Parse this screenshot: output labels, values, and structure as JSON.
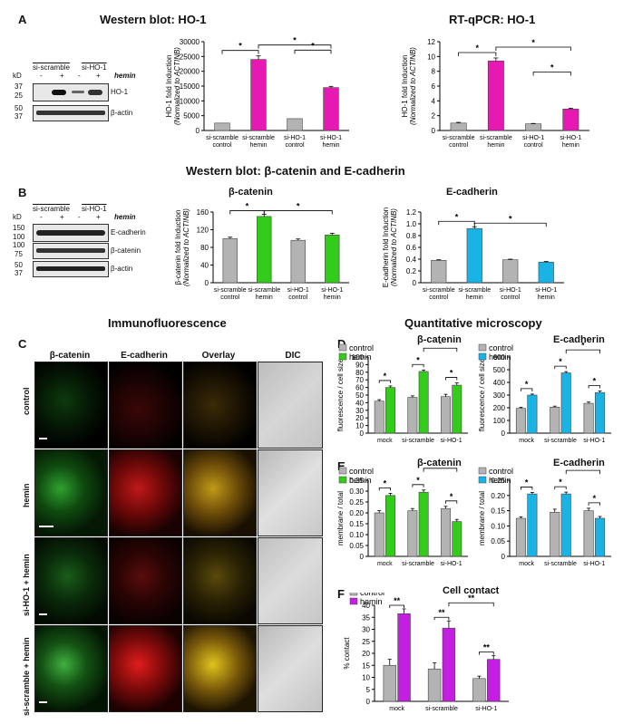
{
  "panels": {
    "A": "A",
    "B": "B",
    "C": "C",
    "D": "D",
    "E": "E",
    "F": "F"
  },
  "titles": {
    "wb_ho1": "Western blot: HO-1",
    "rtqpcr_ho1": "RT-qPCR: HO-1",
    "wb_bcat_ecad": "Western blot: β-catenin and E-cadherin",
    "bcat": "β-catenin",
    "ecad": "E-cadherin",
    "immuno": "Immunofluorescence",
    "quant": "Quantitative microscopy",
    "d_bcat": "β-catenin",
    "d_ecad": "E-cadherin",
    "e_bcat": "β-catenin",
    "e_ecad": "E-cadherin",
    "cell_contact": "Cell contact"
  },
  "blotA": {
    "groups": [
      "si-scramble",
      "si-HO-1"
    ],
    "treat": [
      "-",
      "+",
      "-",
      "+"
    ],
    "hemin": "hemin",
    "kd": "kD",
    "markers": [
      "37",
      "25",
      "50",
      "37"
    ],
    "bands": [
      "HO-1",
      "β-actin"
    ]
  },
  "blotB": {
    "groups": [
      "si-scramble",
      "si-HO-1"
    ],
    "treat": [
      "-",
      "+",
      "-",
      "+"
    ],
    "hemin": "hemin",
    "kd": "kD",
    "markers": [
      "150",
      "100",
      "100",
      "75",
      "50",
      "37"
    ],
    "bands": [
      "E-cadherin",
      "β-catenin",
      "β-actin"
    ]
  },
  "immuno": {
    "columns": [
      "β-catenin",
      "E-cadherin",
      "Overlay",
      "DIC"
    ],
    "rows": [
      "control",
      "hemin",
      "si-HO-1 + hemin",
      "si-scramble + hemin"
    ]
  },
  "legend": {
    "control": "control",
    "hemin": "hemin"
  },
  "colors": {
    "gray": "#b3b3b3",
    "magenta": "#e619b3",
    "green": "#33cc1a",
    "cyan": "#19b3e6",
    "purple": "#c31fe0"
  },
  "chart_data": [
    {
      "id": "A_wb",
      "type": "bar",
      "ylabel": "HO-1 fold Induction",
      "ylabel2": "(Normalized to ACTINB)",
      "categories": [
        "si-scramble control",
        "si-scramble hemin",
        "si-HO-1 control",
        "si-HO-1 hemin"
      ],
      "values": [
        2500,
        24000,
        4000,
        14500
      ],
      "errors": [
        0,
        1200,
        0,
        400
      ],
      "colors": [
        "#b3b3b3",
        "#e619b3",
        "#b3b3b3",
        "#e619b3"
      ],
      "ylim": [
        0,
        30000
      ],
      "yticks": [
        "0",
        "5000",
        "10000",
        "15000",
        "20000",
        "25000",
        "30000"
      ]
    },
    {
      "id": "A_qpcr",
      "type": "bar",
      "ylabel": "HO-1 fold Induction",
      "ylabel2": "(Normalized to ACTINB)",
      "categories": [
        "si-scramble control",
        "si-scramble hemin",
        "si-HO-1 control",
        "si-HO-1 hemin"
      ],
      "values": [
        1.0,
        9.4,
        0.9,
        2.9
      ],
      "errors": [
        0.1,
        0.4,
        0.05,
        0.1
      ],
      "colors": [
        "#b3b3b3",
        "#e619b3",
        "#b3b3b3",
        "#e619b3"
      ],
      "ylim": [
        0,
        12
      ],
      "yticks": [
        "0",
        "2",
        "4",
        "6",
        "8",
        "10",
        "12"
      ]
    },
    {
      "id": "B_bcat",
      "type": "bar",
      "ylabel": "β-catenin fold Induction",
      "ylabel2": "(Normalized to ACTINB)",
      "categories": [
        "si-scramble control",
        "si-scramble hemin",
        "si-HO-1 control",
        "si-HO-1 hemin"
      ],
      "values": [
        100,
        150,
        96,
        108
      ],
      "errors": [
        3,
        5,
        3,
        4
      ],
      "colors": [
        "#b3b3b3",
        "#33cc1a",
        "#b3b3b3",
        "#33cc1a"
      ],
      "ylim": [
        0,
        160
      ],
      "yticks": [
        "0",
        "40",
        "80",
        "120",
        "160"
      ]
    },
    {
      "id": "B_ecad",
      "type": "bar",
      "ylabel": "E-cadherin fold Induction",
      "ylabel2": "(Normalized to ACTINB)",
      "categories": [
        "si-scramble control",
        "si-scramble hemin",
        "si-HO-1 control",
        "si-HO-1 hemin"
      ],
      "values": [
        0.38,
        0.92,
        0.39,
        0.35
      ],
      "errors": [
        0.01,
        0.03,
        0.01,
        0.01
      ],
      "colors": [
        "#b3b3b3",
        "#19b3e6",
        "#b3b3b3",
        "#19b3e6"
      ],
      "ylim": [
        0,
        1.2
      ],
      "yticks": [
        "0",
        "0.2",
        "0.4",
        "0.6",
        "0.8",
        "1.0",
        "1.2"
      ]
    },
    {
      "id": "D_bcat",
      "type": "bar",
      "ylabel": "fluorescence / cell size",
      "categories": [
        "mock",
        "si-scramble",
        "si-HO-1"
      ],
      "series": [
        {
          "name": "control",
          "values": [
            42,
            47,
            48
          ],
          "errors": [
            2,
            2,
            3
          ]
        },
        {
          "name": "hemin",
          "values": [
            60,
            81,
            63
          ],
          "errors": [
            2,
            2,
            3
          ]
        }
      ],
      "seriesColors": [
        "#b3b3b3",
        "#33cc1a"
      ],
      "ylim": [
        0,
        100
      ],
      "yticks": [
        "0",
        "10",
        "20",
        "30",
        "40",
        "50",
        "60",
        "70",
        "80",
        "90",
        "100"
      ]
    },
    {
      "id": "D_ecad",
      "type": "bar",
      "ylabel": "fluorescence / cell size",
      "categories": [
        "mock",
        "si-scramble",
        "si-HO-1"
      ],
      "series": [
        {
          "name": "control",
          "values": [
            195,
            205,
            235
          ],
          "errors": [
            8,
            8,
            10
          ]
        },
        {
          "name": "hemin",
          "values": [
            300,
            475,
            320
          ],
          "errors": [
            8,
            10,
            12
          ]
        }
      ],
      "seriesColors": [
        "#b3b3b3",
        "#19b3e6"
      ],
      "ylim": [
        0,
        600
      ],
      "yticks": [
        "0",
        "100",
        "200",
        "300",
        "400",
        "500",
        "600"
      ]
    },
    {
      "id": "E_bcat",
      "type": "bar",
      "ylabel": "membrane / total",
      "categories": [
        "mock",
        "si-scramble",
        "si-HO-1"
      ],
      "series": [
        {
          "name": "control",
          "values": [
            0.2,
            0.21,
            0.22
          ],
          "errors": [
            0.01,
            0.01,
            0.01
          ]
        },
        {
          "name": "hemin",
          "values": [
            0.28,
            0.295,
            0.16
          ],
          "errors": [
            0.01,
            0.01,
            0.01
          ]
        }
      ],
      "seriesColors": [
        "#b3b3b3",
        "#33cc1a"
      ],
      "ylim": [
        0,
        0.35
      ],
      "yticks": [
        "0",
        "0.05",
        "0.10",
        "0.15",
        "0.20",
        "0.25",
        "0.30",
        "0.35"
      ]
    },
    {
      "id": "E_ecad",
      "type": "bar",
      "ylabel": "membrane / total",
      "categories": [
        "mock",
        "si-scramble",
        "si-HO-1"
      ],
      "series": [
        {
          "name": "control",
          "values": [
            0.125,
            0.145,
            0.15
          ],
          "errors": [
            0.005,
            0.01,
            0.008
          ]
        },
        {
          "name": "hemin",
          "values": [
            0.205,
            0.205,
            0.125
          ],
          "errors": [
            0.005,
            0.006,
            0.006
          ]
        }
      ],
      "seriesColors": [
        "#b3b3b3",
        "#19b3e6"
      ],
      "ylim": [
        0,
        0.25
      ],
      "yticks": [
        "0",
        "0.05",
        "0.10",
        "0.15",
        "0.20",
        "0.25"
      ]
    },
    {
      "id": "F_contact",
      "type": "bar",
      "ylabel": "% contact",
      "categories": [
        "mock",
        "si-scramble",
        "si-HO-1"
      ],
      "series": [
        {
          "name": "control",
          "values": [
            15,
            13.5,
            9.5
          ],
          "errors": [
            2.5,
            2.5,
            1
          ]
        },
        {
          "name": "hemin",
          "values": [
            36.5,
            30.5,
            17.5
          ],
          "errors": [
            2,
            3,
            1.5
          ]
        }
      ],
      "seriesColors": [
        "#b3b3b3",
        "#c31fe0"
      ],
      "ylim": [
        0,
        40
      ],
      "yticks": [
        "0",
        "5",
        "10",
        "15",
        "20",
        "25",
        "30",
        "35",
        "40"
      ]
    }
  ]
}
